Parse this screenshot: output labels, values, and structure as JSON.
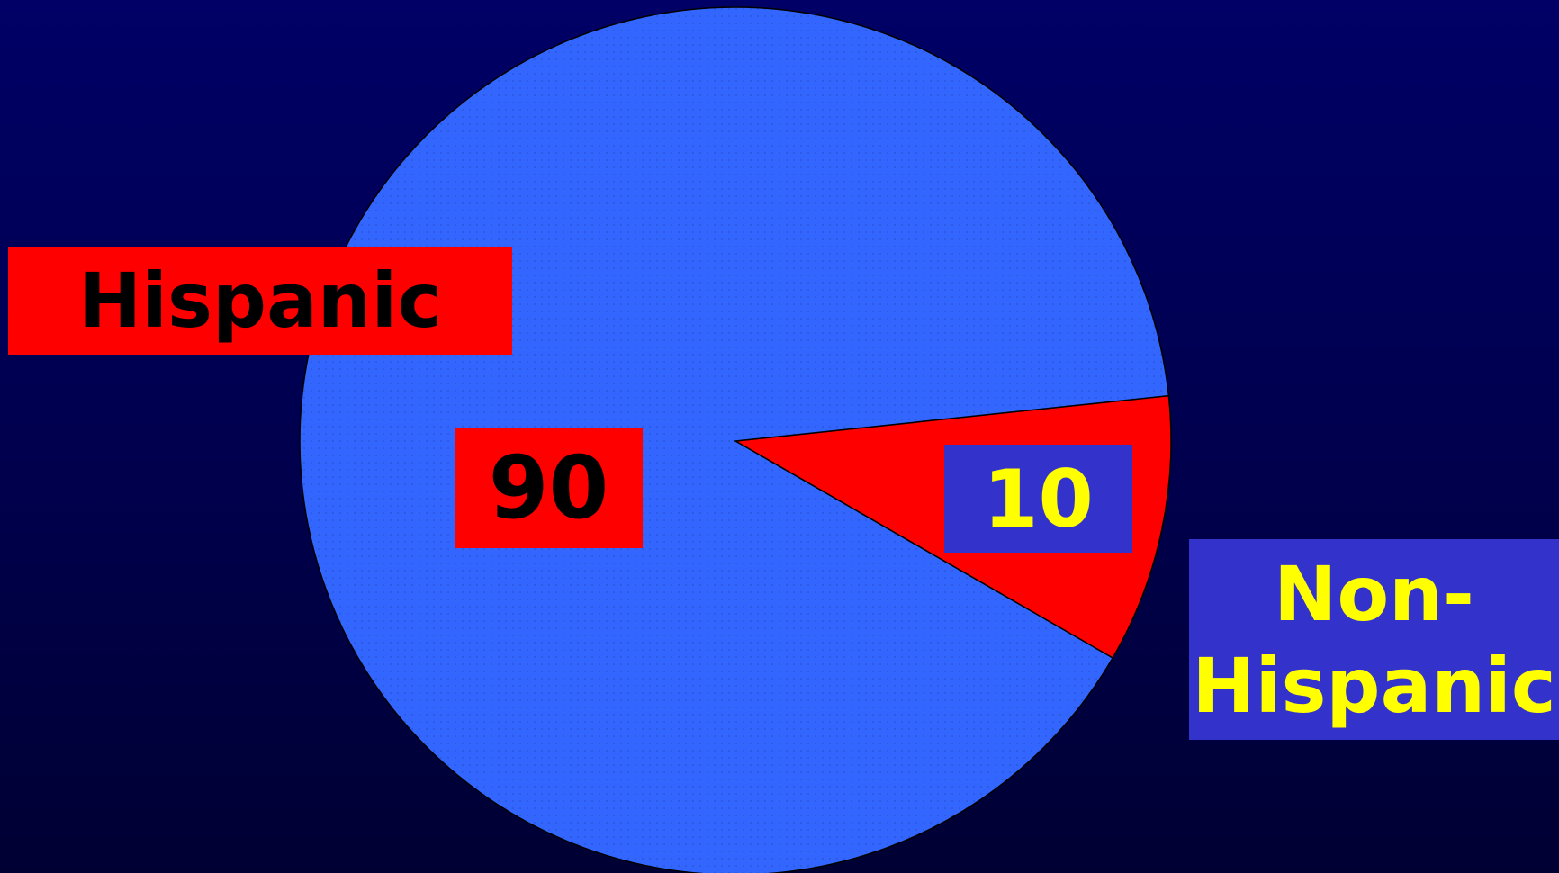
{
  "colors": {
    "background": "#000066",
    "hispanic_slice": "#3366ff",
    "non_hispanic_slice": "#ff0000",
    "hispanic_label_box": "#ff0000",
    "non_hispanic_label_box": "#3333cc",
    "hispanic_text": "#000000",
    "non_hispanic_text": "#ffff00"
  },
  "chart_data": {
    "type": "pie",
    "title": "",
    "slices": [
      {
        "label": "Hispanic",
        "value": 90,
        "value_label": "90",
        "color": "#3366ff"
      },
      {
        "label": "Non-\nHispanic",
        "value": 10,
        "value_label": "10",
        "color": "#ff0000"
      }
    ],
    "start_angle_deg": -6,
    "direction": "clockwise",
    "legend": "none"
  }
}
